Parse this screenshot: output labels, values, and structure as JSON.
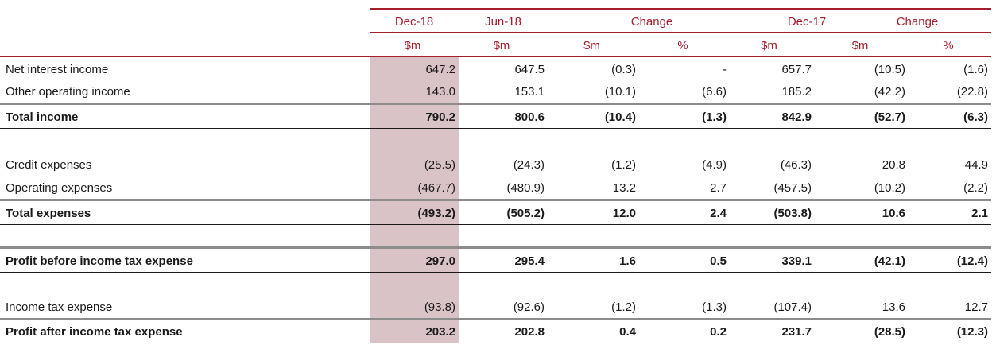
{
  "header": {
    "period_labels": [
      "Dec-18",
      "Jun-18",
      "Change",
      "Dec-17",
      "Change"
    ],
    "unit_labels": [
      "$m",
      "$m",
      "$m",
      "%",
      "$m",
      "$m",
      "%"
    ]
  },
  "rows": [
    {
      "label": "Net interest income",
      "values": [
        "647.2",
        "647.5",
        "(0.3)",
        "-",
        "657.7",
        "(10.5)",
        "(1.6)"
      ]
    },
    {
      "label": "Other operating income",
      "values": [
        "143.0",
        "153.1",
        "(10.1)",
        "(6.6)",
        "185.2",
        "(42.2)",
        "(22.8)"
      ]
    },
    {
      "label": "Total income",
      "values": [
        "790.2",
        "800.6",
        "(10.4)",
        "(1.3)",
        "842.9",
        "(52.7)",
        "(6.3)"
      ]
    },
    {
      "label": "Credit expenses",
      "values": [
        "(25.5)",
        "(24.3)",
        "(1.2)",
        "(4.9)",
        "(46.3)",
        "20.8",
        "44.9"
      ]
    },
    {
      "label": "Operating expenses",
      "values": [
        "(467.7)",
        "(480.9)",
        "13.2",
        "2.7",
        "(457.5)",
        "(10.2)",
        "(2.2)"
      ]
    },
    {
      "label": "Total expenses",
      "values": [
        "(493.2)",
        "(505.2)",
        "12.0",
        "2.4",
        "(503.8)",
        "10.6",
        "2.1"
      ]
    },
    {
      "label": "Profit before income tax expense",
      "values": [
        "297.0",
        "295.4",
        "1.6",
        "0.5",
        "339.1",
        "(42.1)",
        "(12.4)"
      ]
    },
    {
      "label": "Income tax expense",
      "values": [
        "(93.8)",
        "(92.6)",
        "(1.2)",
        "(1.3)",
        "(107.4)",
        "13.6",
        "12.7"
      ]
    },
    {
      "label": "Profit after income tax expense",
      "values": [
        "203.2",
        "202.8",
        "0.4",
        "0.2",
        "231.7",
        "(28.5)",
        "(12.3)"
      ]
    }
  ],
  "colors": {
    "header_text": "#a51e2d",
    "header_rule": "#a51e2d",
    "highlight_column": "#d9c3c6",
    "total_rule": "#8c8c8c"
  }
}
